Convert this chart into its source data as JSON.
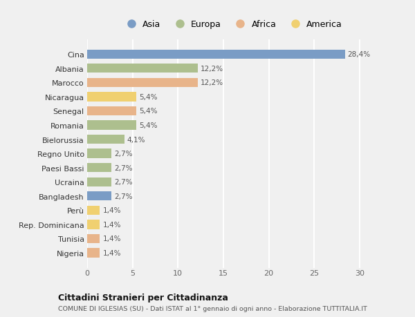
{
  "countries": [
    "Cina",
    "Albania",
    "Marocco",
    "Nicaragua",
    "Senegal",
    "Romania",
    "Bielorussia",
    "Regno Unito",
    "Paesi Bassi",
    "Ucraina",
    "Bangladesh",
    "Perù",
    "Rep. Dominicana",
    "Tunisia",
    "Nigeria"
  ],
  "values": [
    28.4,
    12.2,
    12.2,
    5.4,
    5.4,
    5.4,
    4.1,
    2.7,
    2.7,
    2.7,
    2.7,
    1.4,
    1.4,
    1.4,
    1.4
  ],
  "labels": [
    "28,4%",
    "12,2%",
    "12,2%",
    "5,4%",
    "5,4%",
    "5,4%",
    "4,1%",
    "2,7%",
    "2,7%",
    "2,7%",
    "2,7%",
    "1,4%",
    "1,4%",
    "1,4%",
    "1,4%"
  ],
  "continents": [
    "Asia",
    "Europa",
    "Africa",
    "America",
    "Africa",
    "Europa",
    "Europa",
    "Europa",
    "Europa",
    "Europa",
    "Asia",
    "America",
    "America",
    "Africa",
    "Africa"
  ],
  "colors": {
    "Asia": "#7a9cc5",
    "Europa": "#adbf8e",
    "Africa": "#e8b48a",
    "America": "#f0d070"
  },
  "title": "Cittadini Stranieri per Cittadinanza",
  "subtitle": "COMUNE DI IGLESIAS (SU) - Dati ISTAT al 1° gennaio di ogni anno - Elaborazione TUTTITALIA.IT",
  "xlim": [
    0,
    32
  ],
  "xticks": [
    0,
    5,
    10,
    15,
    20,
    25,
    30
  ],
  "background_color": "#f0f0f0",
  "grid_color": "#ffffff"
}
